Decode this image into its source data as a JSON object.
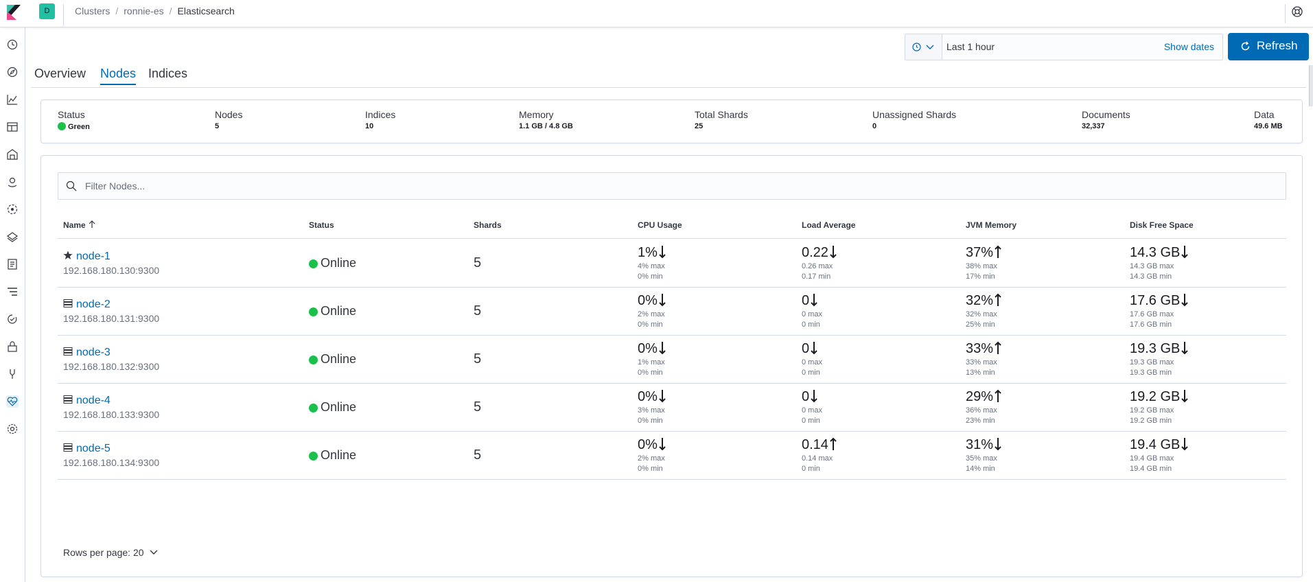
{
  "header": {
    "space_initial": "D",
    "breadcrumbs": [
      "Clusters",
      "ronnie-es",
      "Elasticsearch"
    ]
  },
  "sidenav": {
    "icons": [
      "clock-icon",
      "compass-icon",
      "visualize-icon",
      "dashboard-icon",
      "canvas-icon",
      "maps-icon",
      "ml-icon",
      "infrastructure-icon",
      "logs-icon",
      "apm-icon",
      "uptime-icon",
      "siem-icon",
      "dev-tools-icon",
      "monitoring-icon",
      "management-icon"
    ],
    "active": "monitoring-icon"
  },
  "datepicker": {
    "range_text": "Last 1 hour",
    "show_dates_label": "Show dates"
  },
  "refresh": {
    "label": "Refresh"
  },
  "tabs": [
    "Overview",
    "Nodes",
    "Indices"
  ],
  "active_tab": "Nodes",
  "summary": {
    "status_label": "Status",
    "status_value": "Green",
    "nodes_label": "Nodes",
    "nodes_value": "5",
    "indices_label": "Indices",
    "indices_value": "10",
    "memory_label": "Memory",
    "memory_value": "1.1 GB / 4.8 GB",
    "total_shards_label": "Total Shards",
    "total_shards_value": "25",
    "unassigned_label": "Unassigned Shards",
    "unassigned_value": "0",
    "documents_label": "Documents",
    "documents_value": "32,337",
    "data_label": "Data",
    "data_value": "49.6 MB"
  },
  "filter": {
    "placeholder": "Filter Nodes..."
  },
  "table": {
    "columns": [
      "Name",
      "Status",
      "Shards",
      "CPU Usage",
      "Load Average",
      "JVM Memory",
      "Disk Free Space"
    ],
    "rows": [
      {
        "name": "node-1",
        "type_icon": "star-icon",
        "ip": "192.168.180.130:9300",
        "status": "Online",
        "status_color": "#1ac04a",
        "shards": "5",
        "cpu": {
          "value": "1%",
          "trend": "down",
          "max": "4% max",
          "min": "0% min"
        },
        "load": {
          "value": "0.22",
          "trend": "down",
          "max": "0.26 max",
          "min": "0.17 min"
        },
        "jvm": {
          "value": "37%",
          "trend": "up",
          "max": "38% max",
          "min": "17% min"
        },
        "disk": {
          "value": "14.3 GB",
          "trend": "down",
          "max": "14.3 GB max",
          "min": "14.3 GB min"
        }
      },
      {
        "name": "node-2",
        "type_icon": "storage-icon",
        "ip": "192.168.180.131:9300",
        "status": "Online",
        "status_color": "#1ac04a",
        "shards": "5",
        "cpu": {
          "value": "0%",
          "trend": "down",
          "max": "2% max",
          "min": "0% min"
        },
        "load": {
          "value": "0",
          "trend": "down",
          "max": "0 max",
          "min": "0 min"
        },
        "jvm": {
          "value": "32%",
          "trend": "up",
          "max": "32% max",
          "min": "25% min"
        },
        "disk": {
          "value": "17.6 GB",
          "trend": "down",
          "max": "17.6 GB max",
          "min": "17.6 GB min"
        }
      },
      {
        "name": "node-3",
        "type_icon": "storage-icon",
        "ip": "192.168.180.132:9300",
        "status": "Online",
        "status_color": "#1ac04a",
        "shards": "5",
        "cpu": {
          "value": "0%",
          "trend": "down",
          "max": "1% max",
          "min": "0% min"
        },
        "load": {
          "value": "0",
          "trend": "down",
          "max": "0 max",
          "min": "0 min"
        },
        "jvm": {
          "value": "33%",
          "trend": "up",
          "max": "33% max",
          "min": "13% min"
        },
        "disk": {
          "value": "19.3 GB",
          "trend": "down",
          "max": "19.3 GB max",
          "min": "19.3 GB min"
        }
      },
      {
        "name": "node-4",
        "type_icon": "storage-icon",
        "ip": "192.168.180.133:9300",
        "status": "Online",
        "status_color": "#1ac04a",
        "shards": "5",
        "cpu": {
          "value": "0%",
          "trend": "down",
          "max": "3% max",
          "min": "0% min"
        },
        "load": {
          "value": "0",
          "trend": "down",
          "max": "0 max",
          "min": "0 min"
        },
        "jvm": {
          "value": "29%",
          "trend": "up",
          "max": "36% max",
          "min": "23% min"
        },
        "disk": {
          "value": "19.2 GB",
          "trend": "down",
          "max": "19.2 GB max",
          "min": "19.2 GB min"
        }
      },
      {
        "name": "node-5",
        "type_icon": "storage-icon",
        "ip": "192.168.180.134:9300",
        "status": "Online",
        "status_color": "#1ac04a",
        "shards": "5",
        "cpu": {
          "value": "0%",
          "trend": "down",
          "max": "2% max",
          "min": "0% min"
        },
        "load": {
          "value": "0.14",
          "trend": "up",
          "max": "0.14 max",
          "min": "0 min"
        },
        "jvm": {
          "value": "31%",
          "trend": "down",
          "max": "35% max",
          "min": "14% min"
        },
        "disk": {
          "value": "19.4 GB",
          "trend": "down",
          "max": "19.4 GB max",
          "min": "19.4 GB min"
        }
      }
    ]
  },
  "pagination": {
    "rows_per_page_label": "Rows per page: 20"
  },
  "colors": {
    "accent": "#006bb4",
    "healthy": "#1ac04a",
    "border": "#d3dae6"
  }
}
